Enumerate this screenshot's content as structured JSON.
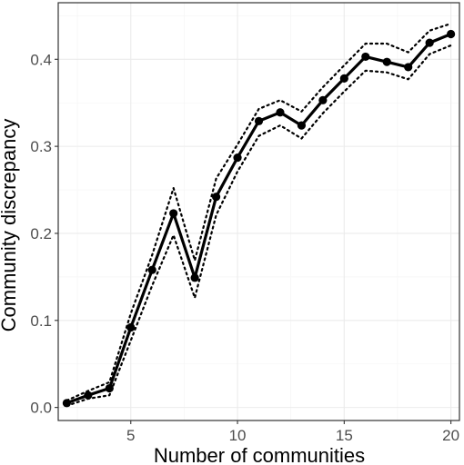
{
  "chart_data": {
    "type": "line",
    "xlabel": "Number of communities",
    "ylabel": "Community discrepancy",
    "xlim": [
      1.6,
      20.4
    ],
    "ylim": [
      -0.015,
      0.465
    ],
    "xticks": [
      5,
      10,
      15,
      20
    ],
    "xtick_labels": [
      "5",
      "10",
      "15",
      "20"
    ],
    "yticks": [
      0.0,
      0.1,
      0.2,
      0.3,
      0.4
    ],
    "ytick_labels": [
      "0.0",
      "0.1",
      "0.2",
      "0.3",
      "0.4"
    ],
    "grid": true,
    "legend": "none",
    "x": [
      2,
      3,
      4,
      5,
      6,
      7,
      8,
      9,
      10,
      11,
      12,
      13,
      14,
      15,
      16,
      17,
      18,
      19,
      20
    ],
    "series": [
      {
        "style": "solid",
        "markers": true,
        "values": [
          0.005,
          0.014,
          0.022,
          0.092,
          0.158,
          0.223,
          0.149,
          0.242,
          0.287,
          0.329,
          0.339,
          0.324,
          0.353,
          0.378,
          0.403,
          0.397,
          0.391,
          0.419,
          0.429
        ]
      },
      {
        "style": "dotted",
        "markers": false,
        "values": [
          0.008,
          0.019,
          0.029,
          0.108,
          0.175,
          0.252,
          0.169,
          0.263,
          0.302,
          0.343,
          0.353,
          0.34,
          0.368,
          0.393,
          0.418,
          0.418,
          0.408,
          0.433,
          0.441
        ]
      },
      {
        "style": "dotted",
        "markers": false,
        "values": [
          0.002,
          0.01,
          0.014,
          0.077,
          0.14,
          0.198,
          0.126,
          0.221,
          0.271,
          0.312,
          0.324,
          0.309,
          0.338,
          0.363,
          0.387,
          0.385,
          0.377,
          0.406,
          0.416
        ]
      }
    ],
    "colors": {
      "line": "#000000",
      "grid_major": "#ebebeb",
      "grid_minor": "#f5f5f5",
      "panel_border": "#333333",
      "tick_text": "#4d4d4d"
    }
  }
}
